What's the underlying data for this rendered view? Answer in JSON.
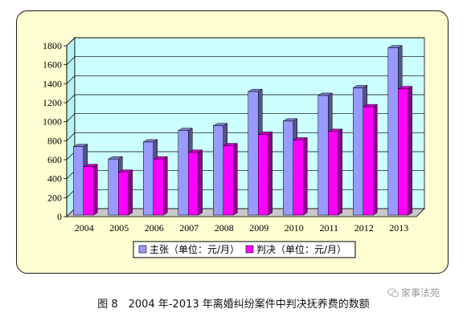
{
  "chart_data": {
    "type": "bar",
    "categories": [
      "2004",
      "2005",
      "2006",
      "2007",
      "2008",
      "2009",
      "2010",
      "2011",
      "2012",
      "2013"
    ],
    "series": [
      {
        "name": "主张（单位：元/月）",
        "color": "#9999ff",
        "values": [
          720,
          590,
          770,
          890,
          940,
          1300,
          990,
          1260,
          1340,
          1760
        ]
      },
      {
        "name": "判决（单位：元/月）",
        "color": "#ff00ff",
        "values": [
          510,
          450,
          590,
          660,
          730,
          850,
          790,
          880,
          1140,
          1330
        ]
      }
    ],
    "yticks": [
      0,
      200,
      400,
      600,
      800,
      1000,
      1200,
      1400,
      1600,
      1800
    ],
    "ylim": [
      0,
      1800
    ],
    "grid": true,
    "legend_position": "bottom",
    "plot_background": "#ccffff",
    "title": "",
    "xlabel": "",
    "ylabel": ""
  },
  "caption": "图 8　2004 年-2013 年离婚纠纷案件中判决抚养费的数额",
  "watermark": {
    "text": "家事法苑",
    "icon": "wechat-icon"
  }
}
